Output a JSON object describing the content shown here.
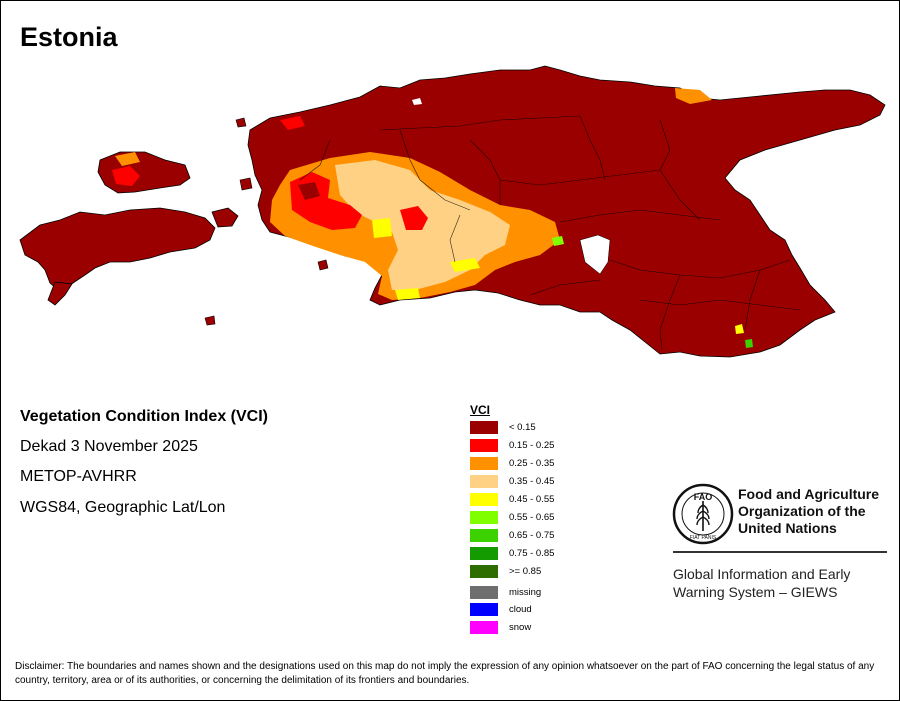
{
  "title": "Estonia",
  "info": {
    "index_name": "Vegetation Condition Index (VCI)",
    "period": "Dekad 3 November 2025",
    "sensor": "METOP-AVHRR",
    "projection": "WGS84, Geographic Lat/Lon"
  },
  "legend": {
    "title": "VCI",
    "classes": [
      {
        "label": "< 0.15",
        "color": "#9b0000"
      },
      {
        "label": "0.15 - 0.25",
        "color": "#ff0000"
      },
      {
        "label": "0.25 - 0.35",
        "color": "#ff9100"
      },
      {
        "label": "0.35 - 0.45",
        "color": "#ffd184"
      },
      {
        "label": "0.45 - 0.55",
        "color": "#ffff00"
      },
      {
        "label": "0.55 - 0.65",
        "color": "#80ff00"
      },
      {
        "label": "0.65 - 0.75",
        "color": "#3cd200"
      },
      {
        "label": "0.75 - 0.85",
        "color": "#149b00"
      },
      {
        "label": ">= 0.85",
        "color": "#2e6e00"
      }
    ],
    "special": [
      {
        "label": "missing",
        "color": "#6e6e6e"
      },
      {
        "label": "cloud",
        "color": "#0000ff"
      },
      {
        "label": "snow",
        "color": "#ff00ff"
      }
    ]
  },
  "organization": {
    "name_line1": "Food and Agriculture",
    "name_line2": "Organization of the",
    "name_line3": "United Nations",
    "system_line1": "Global Information and Early",
    "system_line2": "Warning System – GIEWS",
    "logo_top": "FAO",
    "logo_motto": "FIAT PANIS"
  },
  "disclaimer": "Disclaimer: The boundaries and names shown and the designations used on this map do not imply the expression of any opinion whatsoever on the part of FAO concerning the legal status of any country, territory, area or of its authorities, or concerning the delimitation of its frontiers and boundaries."
}
